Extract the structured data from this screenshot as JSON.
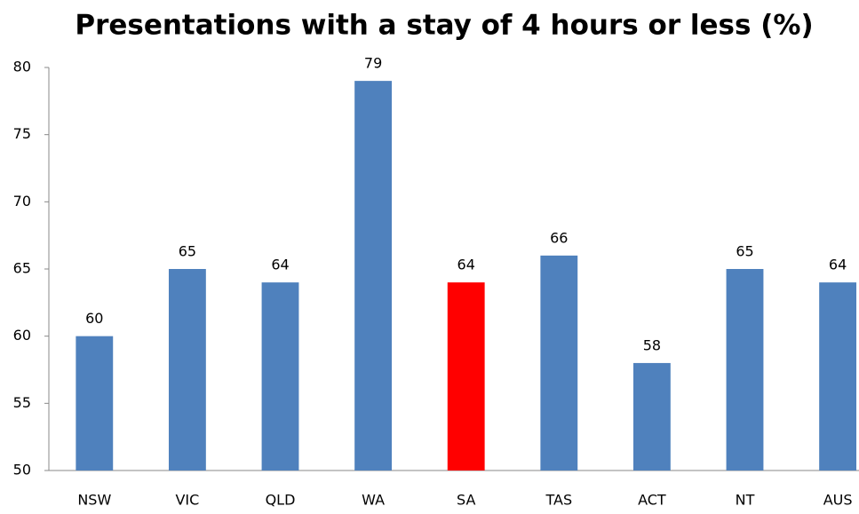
{
  "chart_data": {
    "type": "bar",
    "title": "Presentations with a stay of 4 hours or less (%)",
    "categories": [
      "NSW",
      "VIC",
      "QLD",
      "WA",
      "SA",
      "TAS",
      "ACT",
      "NT",
      "AUS"
    ],
    "values": [
      60,
      65,
      64,
      79,
      64,
      66,
      58,
      65,
      64
    ],
    "colors": [
      "#4f81bd",
      "#4f81bd",
      "#4f81bd",
      "#4f81bd",
      "#ff0000",
      "#4f81bd",
      "#4f81bd",
      "#4f81bd",
      "#4f81bd"
    ],
    "ylim": [
      50,
      80
    ],
    "yticks": [
      50,
      55,
      60,
      65,
      70,
      75,
      80
    ],
    "grid": false
  }
}
